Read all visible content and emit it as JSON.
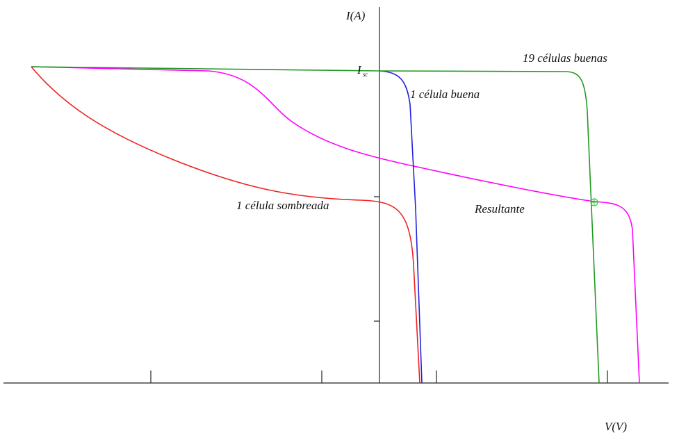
{
  "axes": {
    "y_label": "I(A)",
    "x_label": "V(V)",
    "isc_label": "I",
    "isc_sub": "sc"
  },
  "curves": {
    "good_cells": "19 células buenas",
    "one_good": "1 célula buena",
    "shaded": "1 célula sombreada",
    "result": "Resultante"
  }
}
